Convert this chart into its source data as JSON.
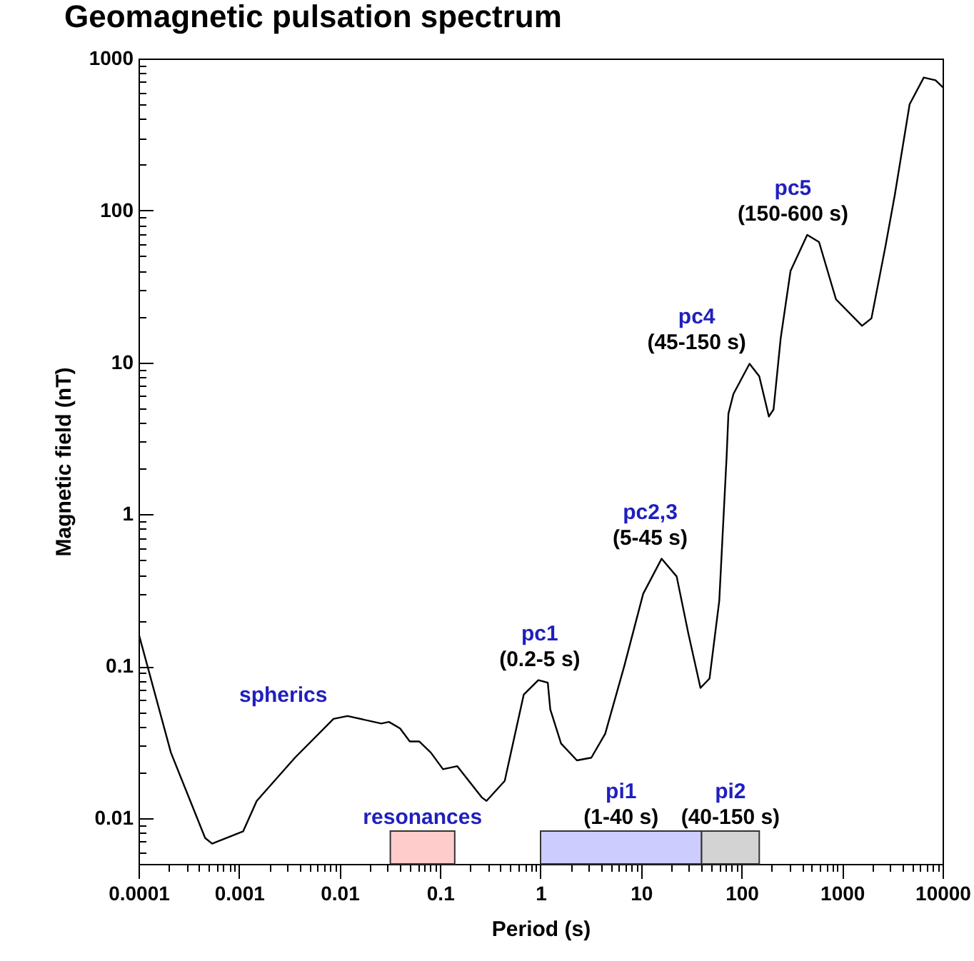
{
  "chart_data": {
    "type": "line",
    "title": "Geomagnetic pulsation spectrum",
    "xlabel": "Period (s)",
    "ylabel": "Magnetic field (nT)",
    "log": "xy",
    "x": [
      0.0001,
      0.00021,
      0.00046,
      0.00054,
      0.0011,
      0.0015,
      0.0036,
      0.0087,
      0.012,
      0.026,
      0.031,
      0.04,
      0.05,
      0.062,
      0.081,
      0.107,
      0.148,
      0.26,
      0.29,
      0.44,
      0.68,
      0.95,
      1.18,
      1.25,
      1.6,
      2.3,
      3.2,
      4.4,
      6.8,
      10.5,
      16,
      22.6,
      29.5,
      39,
      48,
      60,
      71,
      74,
      83,
      120,
      150,
      187,
      208,
      245,
      307,
      450,
      590,
      870,
      1580,
      1960,
      2700,
      3350,
      4700,
      6500,
      8500,
      10000
    ],
    "series": [
      {
        "color": "#000000",
        "values": [
          0.165,
          0.027,
          0.0074,
          0.0068,
          0.0082,
          0.013,
          0.025,
          0.045,
          0.047,
          0.042,
          0.043,
          0.039,
          0.032,
          0.032,
          0.027,
          0.021,
          0.022,
          0.0137,
          0.013,
          0.0176,
          0.065,
          0.081,
          0.078,
          0.052,
          0.031,
          0.024,
          0.025,
          0.036,
          0.1,
          0.3,
          0.51,
          0.39,
          0.165,
          0.072,
          0.083,
          0.27,
          2.4,
          4.6,
          6.2,
          9.8,
          8.1,
          4.4,
          4.9,
          14.4,
          40,
          69,
          62,
          26,
          17.4,
          19.5,
          58,
          127,
          500,
          750,
          720,
          650
        ]
      }
    ],
    "line_style": "solid",
    "xlim": [
      0.0001,
      10000
    ],
    "ylim": [
      0.005,
      1000
    ],
    "xticks": [
      0.0001,
      {
        "value": 0.0002,
        "label": null
      },
      {
        "value": 0.0003,
        "label": null
      },
      {
        "value": 0.0004,
        "label": null
      },
      {
        "value": 0.0005,
        "label": null
      },
      {
        "value": 0.0006,
        "label": null
      },
      {
        "value": 0.0007,
        "label": null
      },
      {
        "value": 0.0008,
        "label": null
      },
      {
        "value": 0.0009,
        "label": null
      },
      0.001,
      {
        "value": 0.002,
        "label": null
      },
      {
        "value": 0.003,
        "label": null
      },
      {
        "value": 0.004,
        "label": null
      },
      {
        "value": 0.005,
        "label": null
      },
      {
        "value": 0.006,
        "label": null
      },
      {
        "value": 0.007,
        "label": null
      },
      {
        "value": 0.008,
        "label": null
      },
      {
        "value": 0.009,
        "label": null
      },
      0.01,
      {
        "value": 0.02,
        "label": null
      },
      {
        "value": 0.03,
        "label": null
      },
      {
        "value": 0.04,
        "label": null
      },
      {
        "value": 0.05,
        "label": null
      },
      {
        "value": 0.06,
        "label": null
      },
      {
        "value": 0.07,
        "label": null
      },
      {
        "value": 0.08,
        "label": null
      },
      {
        "value": 0.09,
        "label": null
      },
      0.1,
      {
        "value": 0.2,
        "label": null
      },
      {
        "value": 0.3,
        "label": null
      },
      {
        "value": 0.4,
        "label": null
      },
      {
        "value": 0.5,
        "label": null
      },
      {
        "value": 0.6,
        "label": null
      },
      {
        "value": 0.7,
        "label": null
      },
      {
        "value": 0.8,
        "label": null
      },
      {
        "value": 0.9,
        "label": null
      },
      1,
      {
        "value": 2,
        "label": null
      },
      {
        "value": 3,
        "label": null
      },
      {
        "value": 4,
        "label": null
      },
      {
        "value": 5,
        "label": null
      },
      {
        "value": 6,
        "label": null
      },
      {
        "value": 7,
        "label": null
      },
      {
        "value": 8,
        "label": null
      },
      {
        "value": 9,
        "label": null
      },
      10,
      {
        "value": 20,
        "label": null
      },
      {
        "value": 30,
        "label": null
      },
      {
        "value": 40,
        "label": null
      },
      {
        "value": 50,
        "label": null
      },
      {
        "value": 60,
        "label": null
      },
      {
        "value": 70,
        "label": null
      },
      {
        "value": 80,
        "label": null
      },
      {
        "value": 90,
        "label": null
      },
      100,
      {
        "value": 200,
        "label": null
      },
      {
        "value": 300,
        "label": null
      },
      {
        "value": 400,
        "label": null
      },
      {
        "value": 500,
        "label": null
      },
      {
        "value": 600,
        "label": null
      },
      {
        "value": 700,
        "label": null
      },
      {
        "value": 800,
        "label": null
      },
      {
        "value": 900,
        "label": null
      },
      1000,
      {
        "value": 2000,
        "label": null
      },
      {
        "value": 3000,
        "label": null
      },
      {
        "value": 4000,
        "label": null
      },
      {
        "value": 5000,
        "label": null
      },
      {
        "value": 6000,
        "label": null
      },
      {
        "value": 7000,
        "label": null
      },
      {
        "value": 8000,
        "label": null
      },
      {
        "value": 9000,
        "label": null
      },
      10000
    ],
    "yticks": [
      {
        "value": 0.005,
        "label": null
      },
      {
        "value": 0.006,
        "label": null
      },
      {
        "value": 0.007,
        "label": null
      },
      {
        "value": 0.008,
        "label": null
      },
      {
        "value": 0.009,
        "label": null
      },
      0.01,
      {
        "value": 0.02,
        "label": null
      },
      {
        "value": 0.03,
        "label": null
      },
      {
        "value": 0.04,
        "label": null
      },
      {
        "value": 0.05,
        "label": null
      },
      {
        "value": 0.06,
        "label": null
      },
      {
        "value": 0.07,
        "label": null
      },
      {
        "value": 0.08,
        "label": null
      },
      {
        "value": 0.09,
        "label": null
      },
      0.1,
      {
        "value": 0.2,
        "label": null
      },
      {
        "value": 0.3,
        "label": null
      },
      {
        "value": 0.4,
        "label": null
      },
      {
        "value": 0.5,
        "label": null
      },
      {
        "value": 0.6,
        "label": null
      },
      {
        "value": 0.7,
        "label": null
      },
      {
        "value": 0.8,
        "label": null
      },
      {
        "value": 0.9,
        "label": null
      },
      1,
      {
        "value": 2,
        "label": null
      },
      {
        "value": 3,
        "label": null
      },
      {
        "value": 4,
        "label": null
      },
      {
        "value": 5,
        "label": null
      },
      {
        "value": 6,
        "label": null
      },
      {
        "value": 7,
        "label": null
      },
      {
        "value": 8,
        "label": null
      },
      {
        "value": 9,
        "label": null
      },
      10,
      {
        "value": 20,
        "label": null
      },
      {
        "value": 30,
        "label": null
      },
      {
        "value": 40,
        "label": null
      },
      {
        "value": 50,
        "label": null
      },
      {
        "value": 60,
        "label": null
      },
      {
        "value": 70,
        "label": null
      },
      {
        "value": 80,
        "label": null
      },
      {
        "value": 90,
        "label": null
      },
      100,
      {
        "value": 200,
        "label": null
      },
      {
        "value": 300,
        "label": null
      },
      {
        "value": 400,
        "label": null
      },
      {
        "value": 500,
        "label": null
      },
      {
        "value": 600,
        "label": null
      },
      {
        "value": 700,
        "label": null
      },
      {
        "value": 800,
        "label": null
      },
      {
        "value": 900,
        "label": null
      },
      1000
    ],
    "bands": [
      {
        "axis": "x",
        "from": 0.032,
        "to": 0.14,
        "label": "resonances",
        "color": "#ffcccc"
      },
      {
        "axis": "x",
        "from": 1,
        "to": 40,
        "label": "pi1\n(1-40 s)",
        "color": "#ccccff"
      },
      {
        "axis": "x",
        "from": 40,
        "to": 150,
        "label": "pi2\n(40-150 s)",
        "color": "#d3d3d3"
      }
    ],
    "annotations": [
      {
        "text": "spherics",
        "x": 0.012,
        "y": 0.047
      },
      {
        "text": "pc1\n(0.2-5 s)",
        "x": 0.95,
        "y": 0.081
      },
      {
        "text": "pc2,3\n(5-45 s)",
        "x": 16,
        "y": 0.51
      },
      {
        "text": "pc4\n(45-150 s)",
        "x": 120,
        "y": 9.8
      },
      {
        "text": "pc5\n(150-600 s)",
        "x": 450,
        "y": 69
      }
    ]
  }
}
